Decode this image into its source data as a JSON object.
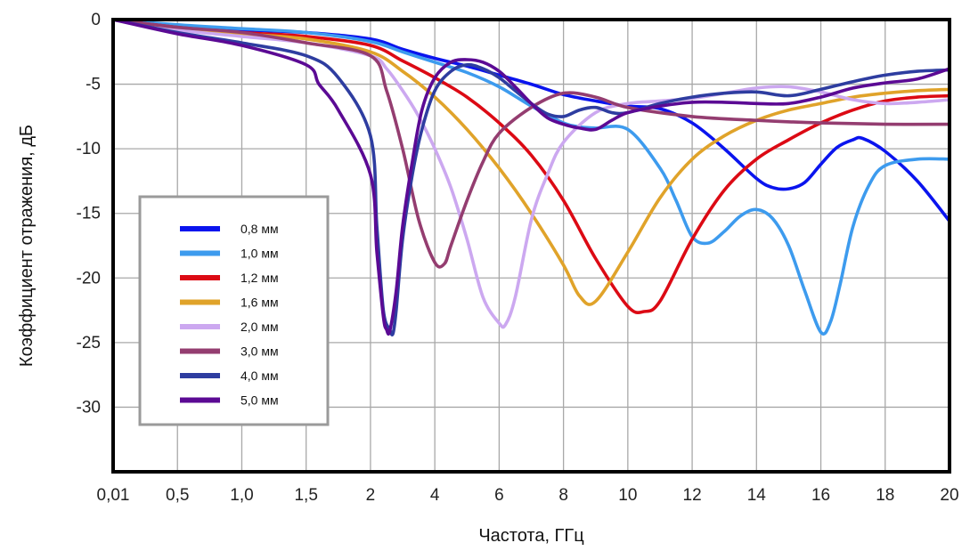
{
  "chart_data": {
    "type": "line",
    "title": "",
    "xlabel": "Частота, ГГц",
    "ylabel": "Коэффициент отражения, дБ",
    "ylim": [
      -35,
      0
    ],
    "yticks": [
      0,
      -5,
      -10,
      -15,
      -20,
      -25,
      -30
    ],
    "ytick_labels": [
      "0",
      "-5",
      "-10",
      "-15",
      "-20",
      "-25",
      "-30"
    ],
    "xtick_labels": [
      "0,01",
      "0,5",
      "1,0",
      "1,5",
      "2",
      "4",
      "6",
      "8",
      "10",
      "12",
      "14",
      "16",
      "18",
      "20"
    ],
    "x_scale": "piecewise: 0.01–2 GHz linear in 0.5 steps, 2–20 GHz linear in 2 steps, equal tick spacing",
    "grid": true,
    "legend_position": "left",
    "series": [
      {
        "name": "0,8 мм",
        "color": "#0a14ee",
        "x": [
          0.01,
          0.5,
          1.0,
          1.5,
          2,
          3,
          4,
          5,
          6,
          7,
          8,
          9,
          10,
          11,
          12,
          13,
          14,
          14.5,
          15,
          15.5,
          16,
          16.5,
          17,
          17.3,
          18,
          19,
          20
        ],
        "y": [
          0,
          -0.5,
          -0.8,
          -1.0,
          -1.5,
          -2.3,
          -3.0,
          -3.6,
          -4.3,
          -5.0,
          -5.8,
          -6.3,
          -6.7,
          -6.9,
          -8.0,
          -10.0,
          -12.3,
          -13.0,
          -13.1,
          -12.6,
          -11.2,
          -9.9,
          -9.3,
          -9.2,
          -10.2,
          -12.5,
          -15.6
        ]
      },
      {
        "name": "1,0 мм",
        "color": "#3d9bee",
        "x": [
          0.01,
          0.5,
          1.0,
          1.5,
          2,
          3,
          4,
          5,
          6,
          7,
          8,
          8.5,
          9,
          10,
          11,
          11.5,
          12,
          12.5,
          13,
          13.5,
          14,
          14.5,
          15,
          15.5,
          16,
          16.3,
          16.6,
          17,
          17.5,
          18,
          19,
          20
        ],
        "y": [
          0,
          -0.4,
          -0.7,
          -1.0,
          -1.7,
          -2.5,
          -3.3,
          -4.1,
          -5.2,
          -6.7,
          -8.0,
          -8.3,
          -8.4,
          -8.5,
          -11.5,
          -14.0,
          -16.8,
          -17.3,
          -16.4,
          -15.2,
          -14.7,
          -15.4,
          -17.5,
          -21.0,
          -24.2,
          -23.4,
          -20.5,
          -16.0,
          -12.8,
          -11.3,
          -10.8,
          -10.8
        ]
      },
      {
        "name": "1,2 мм",
        "color": "#dc0a14",
        "x": [
          0.01,
          0.5,
          1.0,
          1.5,
          2,
          3,
          4,
          5,
          6,
          7,
          8,
          9,
          10,
          10.5,
          11,
          12,
          13,
          14,
          15,
          16,
          17,
          18,
          19,
          20
        ],
        "y": [
          0,
          -0.6,
          -1.0,
          -1.3,
          -2.0,
          -3.2,
          -4.5,
          -6.0,
          -8.0,
          -10.5,
          -14.0,
          -18.5,
          -22.2,
          -22.6,
          -21.8,
          -17.0,
          -13.2,
          -10.8,
          -9.3,
          -8.0,
          -7.0,
          -6.3,
          -6.0,
          -5.9
        ]
      },
      {
        "name": "1,6 мм",
        "color": "#e0a32a",
        "x": [
          0.01,
          0.5,
          1.0,
          1.5,
          2,
          3,
          4,
          5,
          6,
          7,
          8,
          8.5,
          9,
          10,
          11,
          12,
          13,
          14,
          15,
          16,
          17,
          18,
          19,
          20
        ],
        "y": [
          0,
          -0.7,
          -1.1,
          -1.5,
          -2.5,
          -4.0,
          -6.0,
          -8.5,
          -11.5,
          -15.0,
          -19.0,
          -21.4,
          -21.8,
          -18.0,
          -13.8,
          -10.8,
          -9.0,
          -7.8,
          -7.0,
          -6.5,
          -6.0,
          -5.7,
          -5.5,
          -5.4
        ]
      },
      {
        "name": "2,0 мм",
        "color": "#cca8f0",
        "x": [
          0.01,
          0.5,
          1.0,
          1.5,
          2,
          2.5,
          3,
          3.5,
          4,
          4.5,
          5,
          5.5,
          6,
          6.2,
          6.5,
          7,
          7.5,
          8,
          9,
          10,
          11,
          12,
          13,
          14,
          15,
          16,
          17,
          18,
          19,
          20
        ],
        "y": [
          0,
          -0.8,
          -1.3,
          -1.8,
          -2.8,
          -3.8,
          -5.5,
          -7.5,
          -10.0,
          -13.0,
          -17.0,
          -21.5,
          -23.5,
          -23.6,
          -21.5,
          -15.5,
          -12.0,
          -9.5,
          -7.2,
          -6.5,
          -6.3,
          -6.1,
          -5.7,
          -5.3,
          -5.2,
          -5.6,
          -6.2,
          -6.5,
          -6.4,
          -6.2
        ]
      },
      {
        "name": "3,0 мм",
        "color": "#943d70",
        "x": [
          0.01,
          0.5,
          1.0,
          1.5,
          2,
          2.5,
          3,
          3.5,
          4,
          4.3,
          4.5,
          5,
          5.5,
          6,
          7,
          8,
          9,
          10,
          12,
          14,
          16,
          18,
          20
        ],
        "y": [
          0,
          -0.6,
          -1.0,
          -1.8,
          -2.8,
          -5.5,
          -10.0,
          -15.5,
          -18.8,
          -18.9,
          -17.5,
          -14.0,
          -11.0,
          -8.8,
          -6.8,
          -5.7,
          -6.0,
          -6.8,
          -7.5,
          -7.8,
          -8.0,
          -8.1,
          -8.1
        ]
      },
      {
        "name": "4,0 мм",
        "color": "#2e3da0",
        "x": [
          0.01,
          0.5,
          1.0,
          1.5,
          1.75,
          2,
          2.2,
          2.4,
          2.6,
          2.7,
          2.8,
          3,
          3.3,
          3.6,
          4,
          4.5,
          5,
          5.5,
          6,
          6.5,
          7,
          7.5,
          8,
          8.5,
          9,
          9.5,
          10,
          11,
          12,
          13,
          14,
          15,
          16,
          17,
          18,
          19,
          20
        ],
        "y": [
          0,
          -1.0,
          -1.8,
          -2.8,
          -4.5,
          -9.0,
          -16.0,
          -22.5,
          -24.0,
          -24.3,
          -22.5,
          -17.0,
          -12.0,
          -8.5,
          -5.5,
          -4.0,
          -3.5,
          -3.8,
          -4.5,
          -5.5,
          -6.5,
          -7.3,
          -7.5,
          -7.0,
          -6.8,
          -7.2,
          -7.2,
          -6.5,
          -6.0,
          -5.7,
          -5.6,
          -5.9,
          -5.4,
          -4.8,
          -4.3,
          -4.0,
          -3.9
        ]
      },
      {
        "name": "5,0 мм",
        "color": "#5b0a94",
        "x": [
          0.01,
          0.5,
          1.0,
          1.5,
          1.6,
          1.75,
          2,
          2.2,
          2.4,
          2.5,
          2.6,
          2.8,
          3,
          3.3,
          3.6,
          4,
          4.5,
          5,
          5.5,
          6,
          6.5,
          7,
          7.5,
          8,
          8.5,
          9,
          9.5,
          10,
          11,
          12,
          13,
          14,
          15,
          16,
          17,
          18,
          19,
          20
        ],
        "y": [
          0,
          -1.1,
          -2.0,
          -3.5,
          -5.0,
          -7.0,
          -12.0,
          -18.0,
          -23.0,
          -24.0,
          -24.1,
          -21.0,
          -16.0,
          -11.0,
          -7.0,
          -4.5,
          -3.3,
          -3.1,
          -3.3,
          -4.0,
          -5.2,
          -6.5,
          -7.6,
          -8.1,
          -8.4,
          -8.5,
          -7.8,
          -7.2,
          -6.7,
          -6.4,
          -6.4,
          -6.5,
          -6.5,
          -6.0,
          -5.3,
          -4.9,
          -4.6,
          -3.8
        ]
      }
    ]
  }
}
